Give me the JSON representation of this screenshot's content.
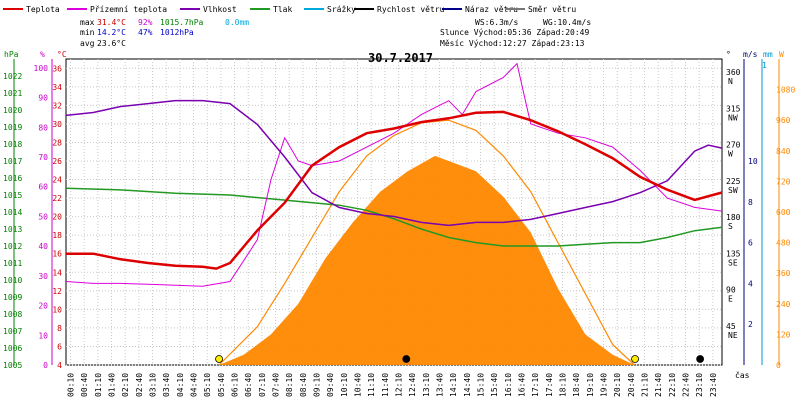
{
  "chart_data": {
    "type": "line",
    "title": "30.7.2017",
    "x_label": "čas",
    "x_ticks": [
      "00:10",
      "00:40",
      "01:10",
      "01:40",
      "02:10",
      "02:40",
      "03:10",
      "03:40",
      "04:10",
      "04:40",
      "05:10",
      "05:40",
      "06:10",
      "06:40",
      "07:10",
      "07:40",
      "08:10",
      "08:40",
      "09:10",
      "09:40",
      "10:10",
      "10:40",
      "11:10",
      "11:40",
      "12:10",
      "12:40",
      "13:10",
      "13:40",
      "14:10",
      "14:40",
      "15:10",
      "15:40",
      "16:10",
      "16:40",
      "17:10",
      "17:40",
      "18:10",
      "18:40",
      "19:10",
      "19:40",
      "20:10",
      "20:40",
      "21:10",
      "21:40",
      "22:10",
      "22:40",
      "23:10",
      "23:40"
    ],
    "axes": {
      "hpa": {
        "unit": "hPa",
        "color": "#008000",
        "range": [
          1005,
          1023
        ],
        "ticks": [
          1005,
          1006,
          1007,
          1008,
          1009,
          1010,
          1011,
          1012,
          1013,
          1014,
          1015,
          1016,
          1017,
          1018,
          1019,
          1020,
          1021,
          1022
        ]
      },
      "percent": {
        "unit": "%",
        "color": "#cc00cc",
        "range": [
          0,
          103
        ],
        "ticks": [
          0,
          10,
          20,
          30,
          40,
          50,
          60,
          70,
          80,
          90,
          100
        ]
      },
      "celsius": {
        "unit": "°C",
        "color": "#cc0000",
        "range": [
          4,
          37
        ],
        "ticks": [
          4,
          6,
          8,
          10,
          12,
          14,
          16,
          18,
          20,
          22,
          24,
          26,
          28,
          30,
          32,
          34,
          36
        ]
      },
      "direction": {
        "unit": "°",
        "color": "#000000",
        "range": [
          0,
          380
        ],
        "ticks": [
          "360 N",
          "315 NW",
          "270 W",
          "225 SW",
          "180 S",
          "135 SE",
          "90 E",
          "45 NE"
        ]
      },
      "wind": {
        "unit": "m/s",
        "color": "#000080",
        "range": [
          0,
          15
        ],
        "ticks": [
          2,
          4,
          6,
          8,
          10
        ]
      },
      "rain": {
        "unit": "mm",
        "color": "#0099cc",
        "label_value": "1"
      },
      "solar": {
        "unit": "W",
        "color": "#ff8800",
        "range": [
          0,
          1200
        ],
        "ticks": [
          0,
          120,
          240,
          360,
          480,
          600,
          720,
          840,
          960,
          1080
        ]
      }
    },
    "legend": [
      {
        "name": "Teplota",
        "color": "#dd0000"
      },
      {
        "name": "Přízemní teplota",
        "color": "#dd00dd"
      },
      {
        "name": "Vlhkost",
        "color": "#7a00b0"
      },
      {
        "name": "Tlak",
        "color": "#229922"
      },
      {
        "name": "Srážky",
        "color": "#00aadd"
      },
      {
        "name": "Rychlost větru",
        "color": "#000000"
      },
      {
        "name": "Náraz větru",
        "color": "#000088"
      },
      {
        "name": "Směr větru",
        "color": "#777777"
      }
    ],
    "stats": {
      "max": {
        "label": "max",
        "temp": "31.4°C",
        "hum": "92%",
        "press": "1015.7hPa",
        "rain": "0.0mm"
      },
      "min": {
        "label": "min",
        "temp": "14.2°C",
        "hum": "47%",
        "press": "1012hPa"
      },
      "avg": {
        "label": "avg",
        "temp": "23.6°C"
      }
    },
    "info": {
      "ws": "WS:6.3m/s",
      "wg": "WG:10.4m/s",
      "sun": "Slunce Východ:05:36  Západ:20:49",
      "moon": "Měsíc  Východ:12:27  Západ:23:13"
    },
    "series": [
      {
        "name": "Teplota",
        "unit": "°C",
        "hours": [
          0,
          1,
          2,
          3,
          4,
          5,
          5.5,
          6,
          7,
          8,
          9,
          10,
          11,
          12,
          13,
          14,
          15,
          16,
          17,
          18,
          19,
          20,
          21,
          22,
          23,
          24
        ],
        "values": [
          16,
          16,
          15.4,
          15,
          14.7,
          14.6,
          14.4,
          15,
          18.5,
          21.5,
          25.5,
          27.5,
          29,
          29.5,
          30.2,
          30.6,
          31.2,
          31.3,
          30.4,
          29.2,
          27.8,
          26.3,
          24.3,
          22.9,
          21.8,
          22.6
        ]
      },
      {
        "name": "Přízemní teplota",
        "unit": "°C",
        "hours": [
          0,
          1,
          2,
          3,
          4,
          5,
          6,
          7,
          7.5,
          8,
          8.5,
          9,
          10,
          11,
          12,
          13,
          14,
          14.5,
          15,
          16,
          16.5,
          17,
          18,
          19,
          20,
          21,
          22,
          23,
          24
        ],
        "values": [
          13,
          12.8,
          12.8,
          12.7,
          12.6,
          12.5,
          13,
          17.5,
          24,
          28.5,
          26,
          25.5,
          26,
          27.5,
          29,
          31,
          32.5,
          31,
          33.5,
          35,
          36.5,
          30,
          29,
          28.5,
          27.5,
          25,
          22,
          21,
          20.6
        ]
      },
      {
        "name": "Vlhkost",
        "unit": "%",
        "hours": [
          0,
          1,
          2,
          3,
          4,
          5,
          6,
          7,
          8,
          9,
          10,
          11,
          12,
          13,
          14,
          15,
          16,
          17,
          18,
          19,
          20,
          21,
          22,
          23,
          23.5,
          24
        ],
        "values": [
          84,
          85,
          87,
          88,
          89,
          89,
          88,
          81,
          70,
          58,
          53,
          51,
          50,
          48,
          47,
          48,
          48,
          49,
          51,
          53,
          55,
          58,
          62,
          72,
          74,
          73
        ]
      },
      {
        "name": "Tlak",
        "unit": "hPa",
        "hours": [
          0,
          2,
          4,
          6,
          8,
          10,
          11,
          12,
          13,
          14,
          15,
          16,
          17,
          18,
          19,
          20,
          21,
          22,
          23,
          24
        ],
        "values": [
          1015.4,
          1015.3,
          1015.1,
          1015,
          1014.7,
          1014.4,
          1014.1,
          1013.6,
          1013,
          1012.5,
          1012.2,
          1012,
          1012,
          1012,
          1012.1,
          1012.2,
          1012.2,
          1012.5,
          1012.9,
          1013.1
        ]
      },
      {
        "name": "Solar",
        "unit": "W",
        "hours": [
          5.6,
          6.5,
          7.5,
          8.5,
          9.5,
          10.5,
          11.5,
          12.5,
          13.5,
          14,
          15,
          16,
          17,
          18,
          19,
          20,
          20.8
        ],
        "values": [
          0,
          40,
          120,
          240,
          420,
          560,
          680,
          760,
          820,
          800,
          760,
          660,
          520,
          300,
          120,
          40,
          0
        ]
      },
      {
        "name": "Solar max",
        "unit": "W",
        "hours": [
          5.6,
          7,
          8,
          9,
          10,
          11,
          12,
          13,
          14,
          15,
          16,
          17,
          18,
          19,
          20,
          20.8
        ],
        "values": [
          0,
          150,
          320,
          500,
          680,
          820,
          900,
          950,
          960,
          920,
          820,
          680,
          480,
          280,
          80,
          0
        ]
      }
    ]
  }
}
